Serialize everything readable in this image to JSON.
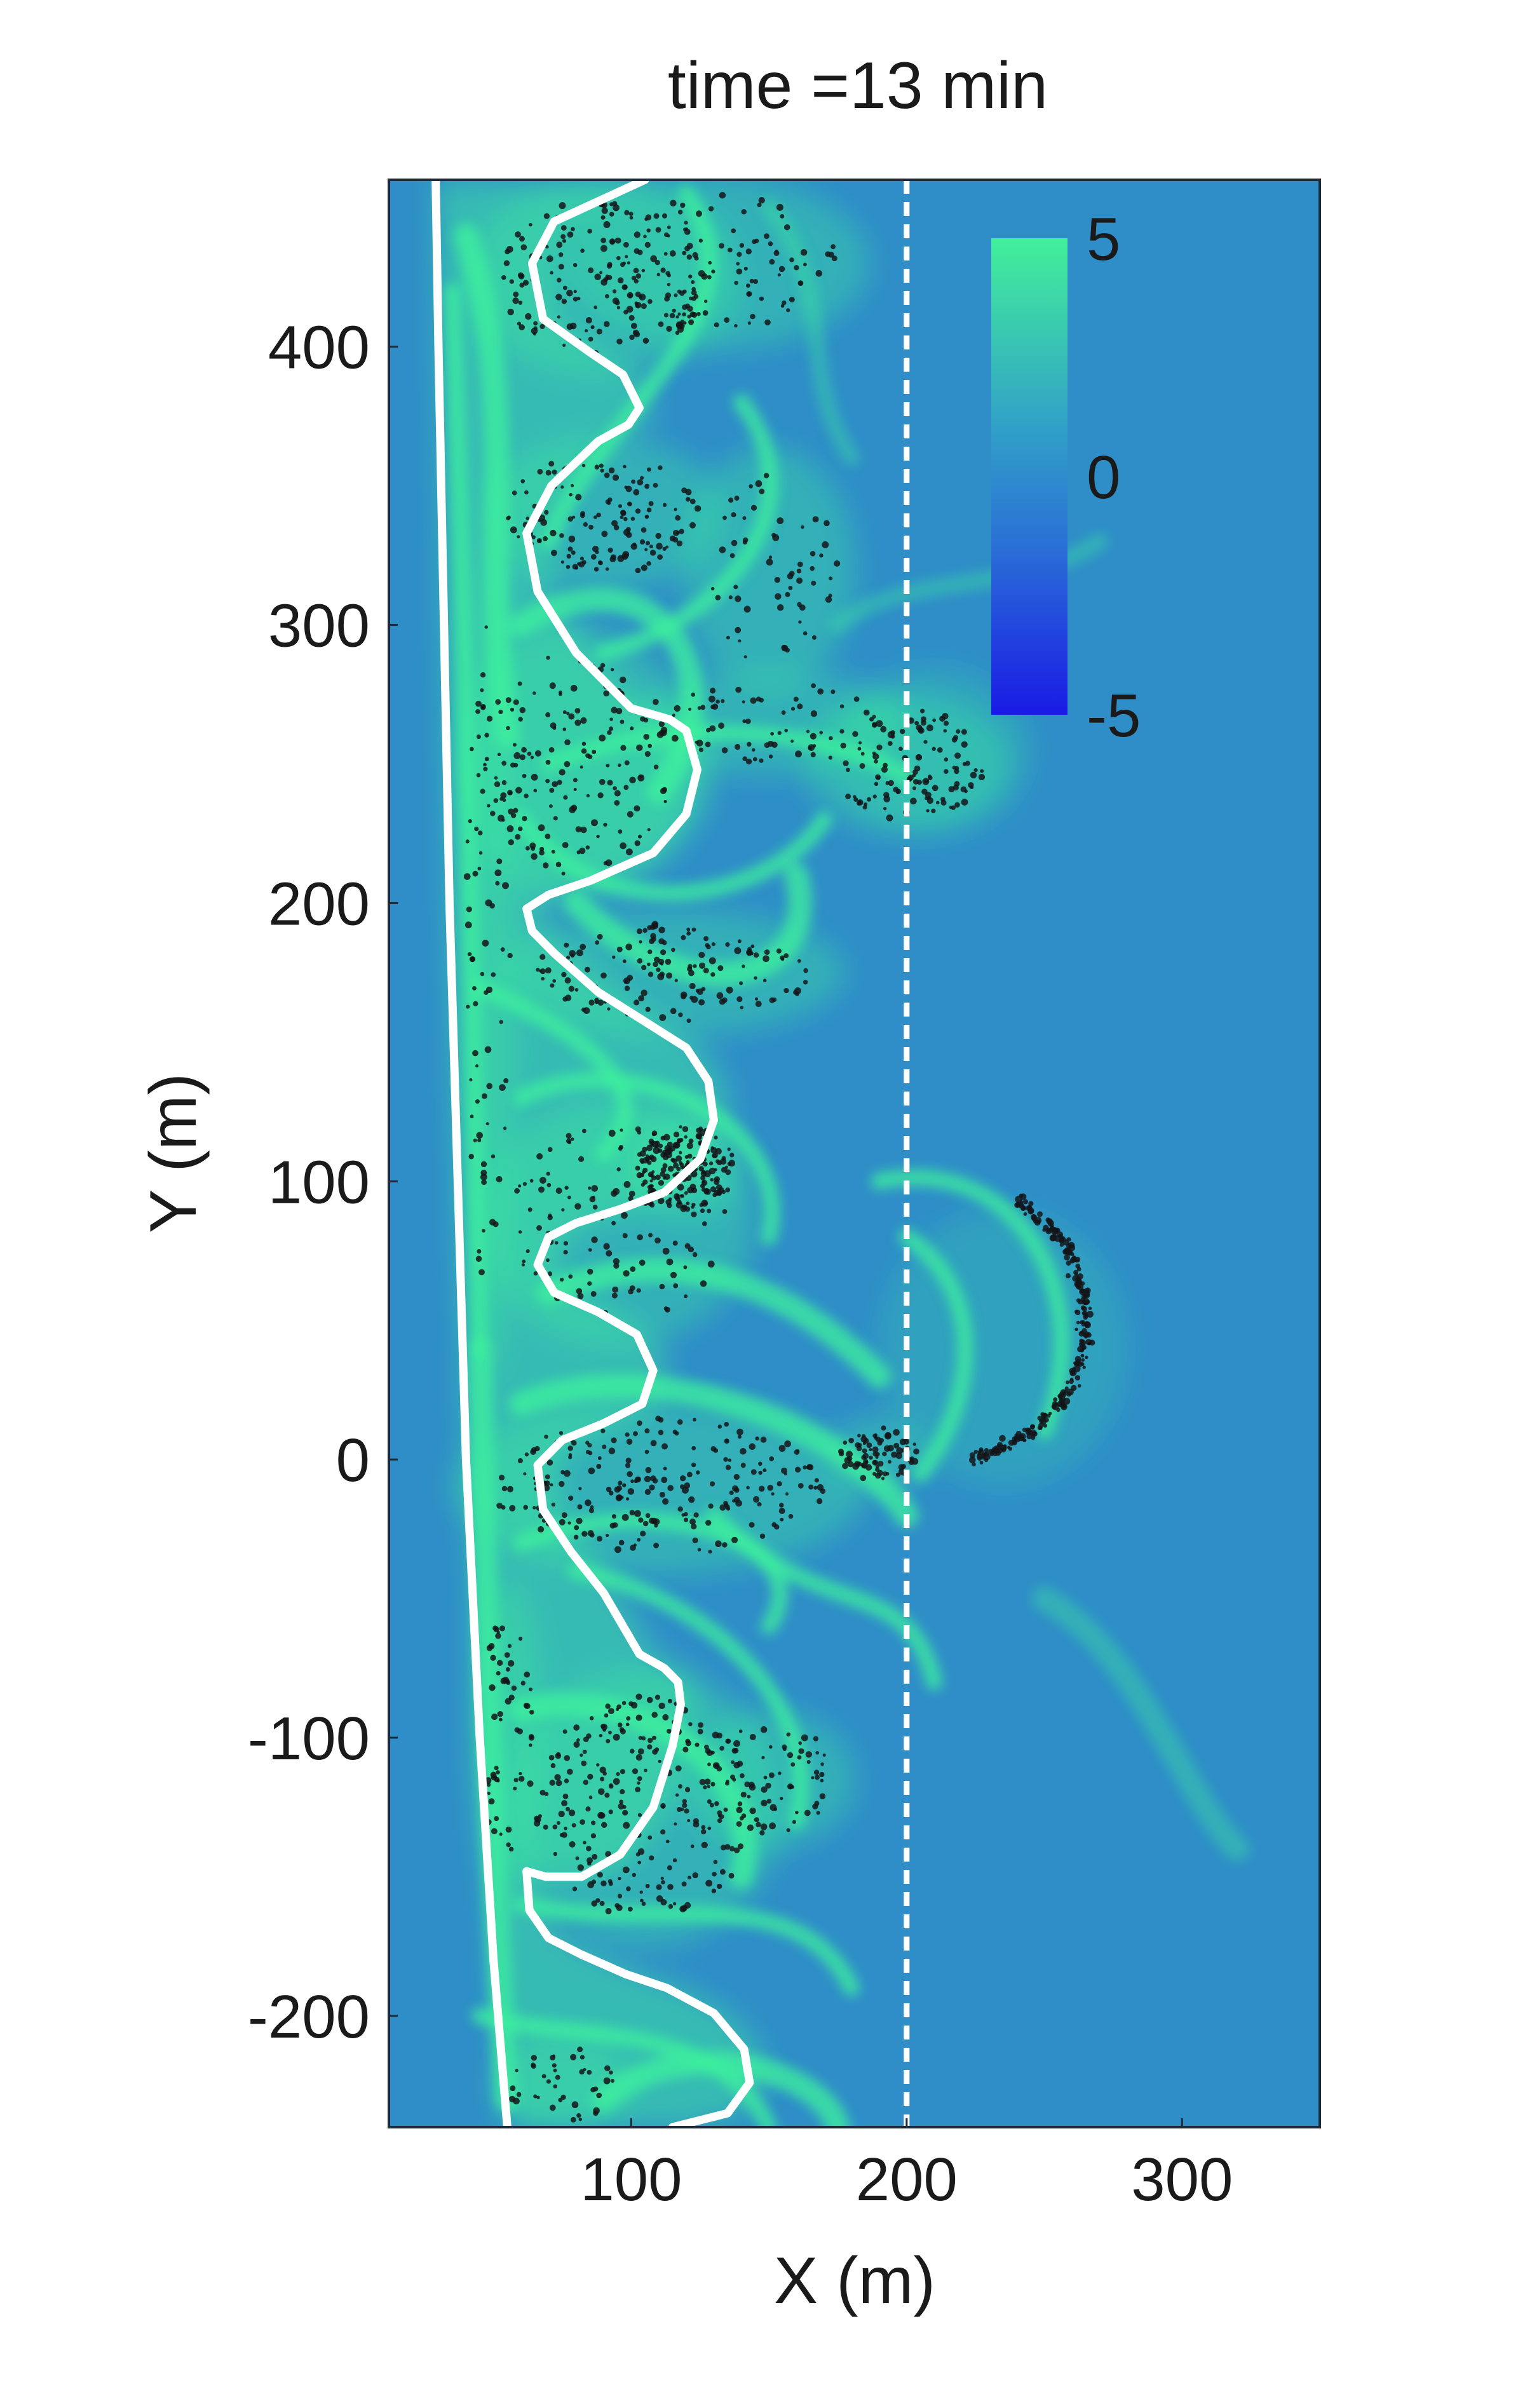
{
  "chart_data": {
    "type": "heatmap",
    "title": "time =13 min",
    "xlabel": "X (m)",
    "ylabel": "Y (m)",
    "xlim": [
      12,
      350
    ],
    "ylim": [
      -240,
      460
    ],
    "xticks": [
      100,
      200,
      300
    ],
    "yticks": [
      -200,
      -100,
      0,
      100,
      200,
      300,
      400
    ],
    "grid": false,
    "colorbar": {
      "min": -5,
      "max": 5,
      "ticks": [
        5,
        0,
        -5
      ],
      "colors": [
        "#1a1ae6",
        "#2a6fd6",
        "#31a0c8",
        "#42f09a"
      ]
    },
    "background_color": "#2f8ec8",
    "streak_color": "#3df29c",
    "reference_line": {
      "x": 200,
      "style": "dashed",
      "color": "#ffffff"
    },
    "shoreline": {
      "color": "#ffffff",
      "points": [
        [
          29,
          460
        ],
        [
          30,
          400
        ],
        [
          32,
          300
        ],
        [
          34,
          200
        ],
        [
          37,
          100
        ],
        [
          40,
          0
        ],
        [
          45,
          -100
        ],
        [
          50,
          -180
        ],
        [
          55,
          -240
        ]
      ]
    },
    "front_line": {
      "color": "#ffffff",
      "points": [
        [
          105,
          460
        ],
        [
          72,
          445
        ],
        [
          64,
          430
        ],
        [
          68,
          410
        ],
        [
          85,
          398
        ],
        [
          97,
          390
        ],
        [
          103,
          378
        ],
        [
          99,
          372
        ],
        [
          88,
          366
        ],
        [
          71,
          350
        ],
        [
          62,
          333
        ],
        [
          66,
          312
        ],
        [
          80,
          290
        ],
        [
          100,
          270
        ],
        [
          114,
          266
        ],
        [
          120,
          262
        ],
        [
          124,
          248
        ],
        [
          120,
          232
        ],
        [
          108,
          218
        ],
        [
          85,
          208
        ],
        [
          70,
          203
        ],
        [
          62,
          198
        ],
        [
          64,
          190
        ],
        [
          72,
          182
        ],
        [
          88,
          168
        ],
        [
          104,
          158
        ],
        [
          120,
          148
        ],
        [
          128,
          136
        ],
        [
          130,
          122
        ],
        [
          125,
          108
        ],
        [
          112,
          96
        ],
        [
          96,
          90
        ],
        [
          80,
          85
        ],
        [
          70,
          80
        ],
        [
          66,
          70
        ],
        [
          72,
          60
        ],
        [
          88,
          53
        ],
        [
          102,
          45
        ],
        [
          108,
          32
        ],
        [
          104,
          20
        ],
        [
          90,
          13
        ],
        [
          75,
          7
        ],
        [
          66,
          -2
        ],
        [
          68,
          -18
        ],
        [
          78,
          -33
        ],
        [
          90,
          -48
        ],
        [
          103,
          -70
        ],
        [
          112,
          -75
        ],
        [
          117,
          -80
        ],
        [
          118,
          -88
        ],
        [
          115,
          -103
        ],
        [
          108,
          -125
        ],
        [
          96,
          -142
        ],
        [
          82,
          -150
        ],
        [
          69,
          -150
        ],
        [
          62,
          -148
        ],
        [
          63,
          -162
        ],
        [
          70,
          -172
        ],
        [
          82,
          -178
        ],
        [
          98,
          -185
        ],
        [
          113,
          -190
        ],
        [
          130,
          -199
        ],
        [
          141,
          -212
        ],
        [
          143,
          -224
        ],
        [
          135,
          -235
        ],
        [
          115,
          -240
        ]
      ]
    },
    "particle_clusters": [
      {
        "cx": 90,
        "cy": 425,
        "rx": 40,
        "ry": 28,
        "n": 160
      },
      {
        "cx": 130,
        "cy": 430,
        "rx": 45,
        "ry": 25,
        "n": 110
      },
      {
        "cx": 90,
        "cy": 340,
        "rx": 35,
        "ry": 22,
        "n": 140
      },
      {
        "cx": 150,
        "cy": 320,
        "rx": 25,
        "ry": 35,
        "n": 60
      },
      {
        "cx": 200,
        "cy": 250,
        "rx": 30,
        "ry": 20,
        "n": 120
      },
      {
        "cx": 150,
        "cy": 265,
        "rx": 40,
        "ry": 15,
        "n": 70
      },
      {
        "cx": 80,
        "cy": 250,
        "rx": 35,
        "ry": 40,
        "n": 160
      },
      {
        "cx": 115,
        "cy": 175,
        "rx": 50,
        "ry": 18,
        "n": 150
      },
      {
        "cx": 120,
        "cy": 105,
        "rx": 18,
        "ry": 15,
        "n": 180
      },
      {
        "cx": 95,
        "cy": 85,
        "rx": 40,
        "ry": 35,
        "n": 130
      },
      {
        "cx": 110,
        "cy": -10,
        "rx": 60,
        "ry": 25,
        "n": 230
      },
      {
        "cx": 190,
        "cy": 2,
        "rx": 14,
        "ry": 10,
        "n": 80
      },
      {
        "cx": 105,
        "cy": -125,
        "rx": 40,
        "ry": 40,
        "n": 250
      },
      {
        "cx": 150,
        "cy": -115,
        "rx": 25,
        "ry": 20,
        "n": 70
      },
      {
        "cx": 55,
        "cy": -100,
        "rx": 10,
        "ry": 45,
        "n": 60
      },
      {
        "cx": 48,
        "cy": 180,
        "rx": 8,
        "ry": 120,
        "n": 80
      },
      {
        "cx": 75,
        "cy": -225,
        "rx": 20,
        "ry": 14,
        "n": 40
      }
    ],
    "particle_arc": {
      "cx": 215,
      "cy": 50,
      "r": 50,
      "start_deg": -80,
      "end_deg": 60,
      "n": 260
    }
  }
}
